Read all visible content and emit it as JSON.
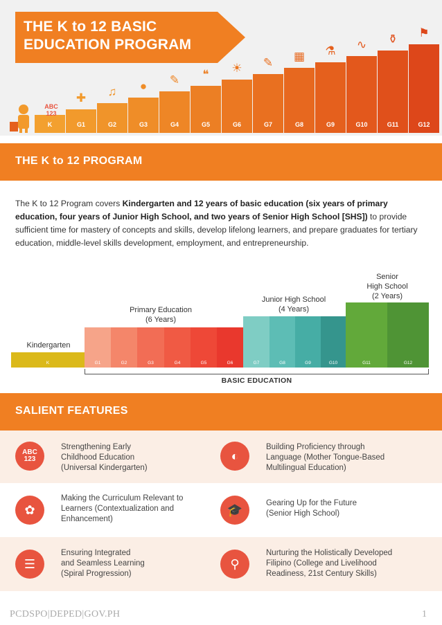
{
  "header": {
    "title_line1": "THE K to 12 BASIC",
    "title_line2": "EDUCATION PROGRAM",
    "abc": "ABC",
    "abc_nums": "123",
    "steps": [
      "K",
      "G1",
      "G2",
      "G3",
      "G4",
      "G5",
      "G6",
      "G7",
      "G8",
      "G9",
      "G10",
      "G11",
      "G12"
    ],
    "step_icons": [
      "math-icon",
      "music-note-icon",
      "basketball-icon",
      "paint-palette-icon",
      "speech-bubble-icon",
      "sun-icon",
      "pencil-icon",
      "calculator-icon",
      "microscope-icon",
      "graph-icon",
      "beaker-icon",
      "graduate-icon"
    ],
    "colors": [
      "#f3a02f",
      "#f29a2c",
      "#f0942a",
      "#ef8d28",
      "#ee8626",
      "#ec7f24",
      "#eb7822",
      "#e97020",
      "#e7681f",
      "#e5601d",
      "#e3581c",
      "#e0501b",
      "#dd471a"
    ]
  },
  "program": {
    "banner_title": "THE K to 12 PROGRAM",
    "p_intro": "The K to 12 Program covers ",
    "p_bold1": "Kindergarten and 12 years of basic education (six years of primary education, four years of Junior High School, and two years of Senior High School [SHS])",
    "p_rest": " to provide sufficient time for mastery of concepts and skills, develop lifelong learners, and prepare graduates for tertiary education, middle-level skills development, employment, and entrepreneurship."
  },
  "chart_data": {
    "type": "bar",
    "categories": [
      "K",
      "G1",
      "G2",
      "G3",
      "G4",
      "G5",
      "G6",
      "G7",
      "G8",
      "G9",
      "G10",
      "G11",
      "G12"
    ],
    "groups": [
      {
        "label": "Kindergarten",
        "members": [
          "K"
        ],
        "color": "#dbb91a"
      },
      {
        "label_line1": "Primary Education",
        "label_line2": "(6 Years)",
        "members": [
          "G1",
          "G2",
          "G3",
          "G4",
          "G5",
          "G6"
        ]
      },
      {
        "label_line1": "Junior High School",
        "label_line2": "(4 Years)",
        "members": [
          "G7",
          "G8",
          "G9",
          "G10"
        ]
      },
      {
        "label_line1": "Senior",
        "label_line2": "High School",
        "label_line3": "(2 Years)",
        "members": [
          "G11",
          "G12"
        ]
      }
    ],
    "bar_labels": [
      "K",
      "G1",
      "G2",
      "G3",
      "G4",
      "G5",
      "G6",
      "G7",
      "G8",
      "G9",
      "G10",
      "G11",
      "G12"
    ],
    "levels": [
      1,
      2,
      2,
      2,
      2,
      2,
      2,
      3,
      3,
      3,
      3,
      4,
      4
    ],
    "colors": [
      "#dbb91a",
      "#f6a489",
      "#f4866a",
      "#f26d55",
      "#f05a44",
      "#ee4837",
      "#e9382d",
      "#7fcdc4",
      "#5dbdb5",
      "#46ada5",
      "#35958d",
      "#62a93a",
      "#4f9435"
    ],
    "bracket_label": "BASIC EDUCATION"
  },
  "features": {
    "banner_title": "SALIENT FEATURES",
    "items": [
      {
        "icon": "abc-icon",
        "glyph_top": "ABC",
        "glyph_bottom": "123",
        "text": "Strengthening Early\nChildhood Education\n(Universal Kindergarten)"
      },
      {
        "icon": "language-icon",
        "glyph": "◐",
        "text": "Building Proficiency through\nLanguage (Mother Tongue-Based\nMultilingual Education)"
      },
      {
        "icon": "puzzle-icon",
        "glyph": "✿",
        "text": "Making the Curriculum Relevant to\nLearners (Contextualization and\nEnhancement)"
      },
      {
        "icon": "graduation-books-icon",
        "glyph": "🎓",
        "text": "Gearing Up for the Future\n(Senior High School)"
      },
      {
        "icon": "spiral-icon",
        "glyph": "☰",
        "text": "Ensuring Integrated\nand Seamless Learning\n(Spiral Progression)"
      },
      {
        "icon": "person-icon",
        "glyph": "⚲",
        "text": "Nurturing the Holistically Developed\nFilipino (College and Livelihood\nReadiness, 21st Century Skills)"
      }
    ]
  },
  "footer": {
    "left": "PCDSPO|DEPED|GOV.PH",
    "page": "1"
  }
}
